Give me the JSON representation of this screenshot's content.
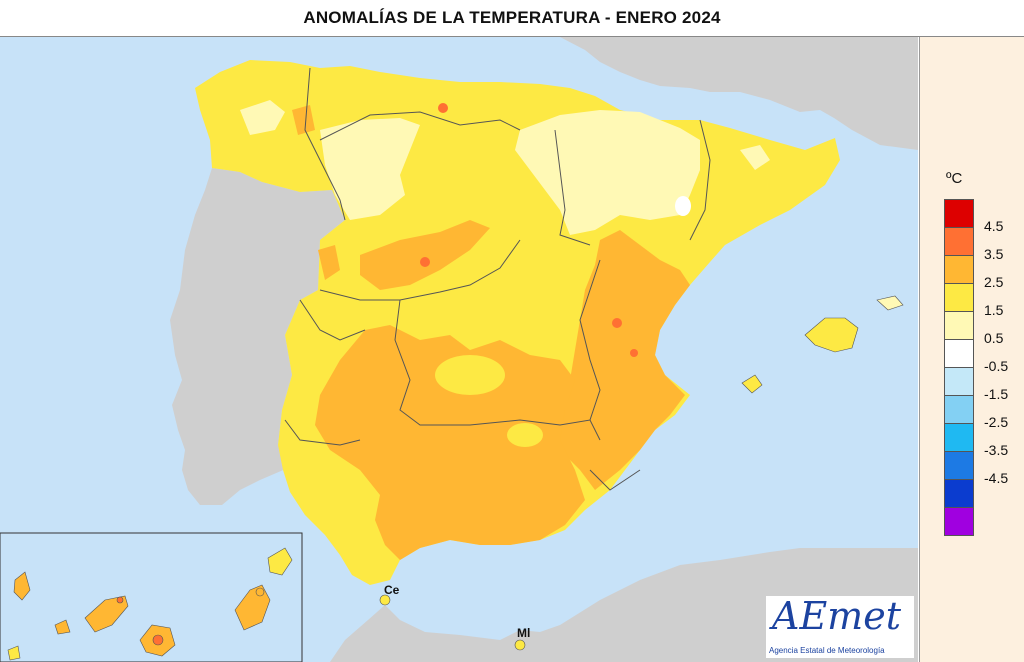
{
  "title": "ANOMALÍAS DE LA TEMPERATURA - ENERO 2024",
  "legend": {
    "unit": "ºC",
    "classes": [
      {
        "color": "#dd0000"
      },
      {
        "color": "#ff7033"
      },
      {
        "color": "#ffb733"
      },
      {
        "color": "#fde944"
      },
      {
        "color": "#fff9b5"
      },
      {
        "color": "#ffffff"
      },
      {
        "color": "#c4e8f8"
      },
      {
        "color": "#83d0f3"
      },
      {
        "color": "#1fb9f2"
      },
      {
        "color": "#1d7ae4"
      },
      {
        "color": "#0b3ccf"
      },
      {
        "color": "#a000e0"
      }
    ],
    "ticks": [
      "4.5",
      "3.5",
      "2.5",
      "1.5",
      "0.5",
      "-0.5",
      "-1.5",
      "-2.5",
      "-3.5",
      "-4.5"
    ]
  },
  "labels": {
    "ceuta": "Ce",
    "melilla": "Ml"
  },
  "logo": {
    "text": "AEmet",
    "subtitle": "Agencia Estatal de Meteorología"
  },
  "colors": {
    "sea": "#c7e2f8",
    "other_land": "#cfcfcf",
    "border": "#555555"
  }
}
